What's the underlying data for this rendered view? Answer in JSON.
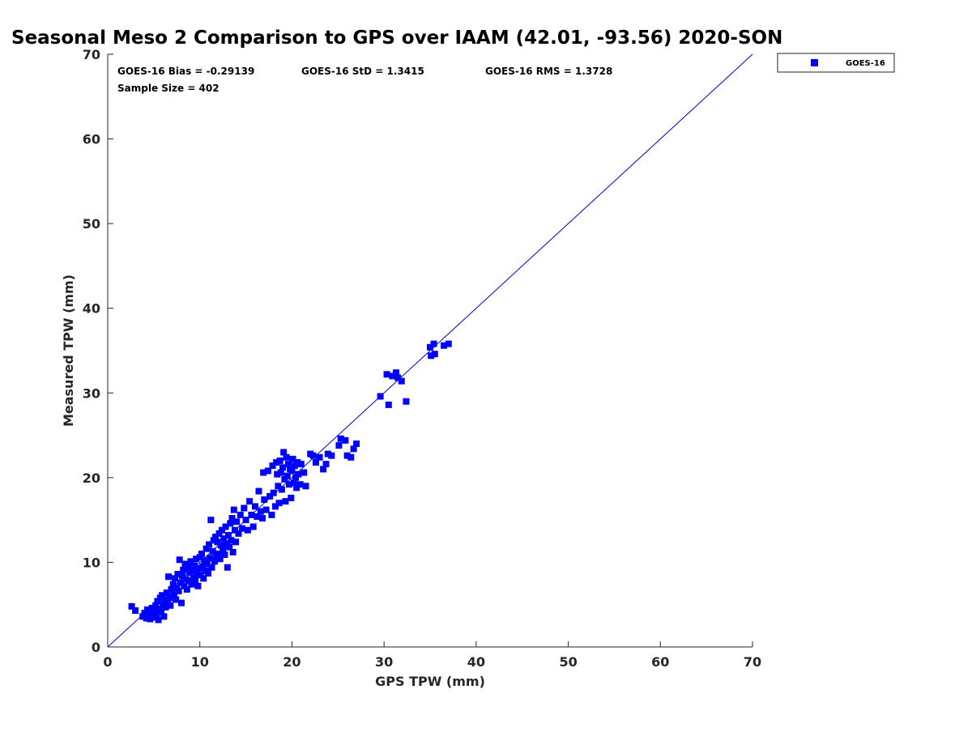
{
  "chart_data": {
    "type": "scatter",
    "title": "Seasonal Meso 2 Comparison to GPS over IAAM (42.01, -93.56) 2020-SON",
    "xlabel": "GPS TPW (mm)",
    "ylabel": "Measured TPW (mm)",
    "xlim": [
      0,
      70
    ],
    "ylim": [
      0,
      70
    ],
    "x_ticks": [
      "0",
      "10",
      "20",
      "30",
      "40",
      "50",
      "60",
      "70"
    ],
    "y_ticks": [
      "0",
      "10",
      "20",
      "30",
      "40",
      "50",
      "60",
      "70"
    ],
    "grid": false,
    "legend_placement": "outside-top-right",
    "reference_line": {
      "from": [
        0,
        0
      ],
      "to": [
        70,
        70
      ],
      "color": "#0000cc"
    },
    "annotations": {
      "bias": "GOES-16 Bias = -0.29139",
      "std": "GOES-16 StD = 1.3415",
      "rms": "GOES-16 RMS = 1.3728",
      "sample_size": "Sample Size = 402"
    },
    "series": [
      {
        "name": "GOES-16",
        "color": "#0000ff",
        "marker": "square",
        "points": [
          [
            2.6,
            4.8
          ],
          [
            3.0,
            4.3
          ],
          [
            3.8,
            3.6
          ],
          [
            4.0,
            4.0
          ],
          [
            4.2,
            3.4
          ],
          [
            4.3,
            4.4
          ],
          [
            4.5,
            3.8
          ],
          [
            4.6,
            3.3
          ],
          [
            4.8,
            4.6
          ],
          [
            4.9,
            3.7
          ],
          [
            5.0,
            4.2
          ],
          [
            5.1,
            3.5
          ],
          [
            5.2,
            4.9
          ],
          [
            5.3,
            3.9
          ],
          [
            5.4,
            5.4
          ],
          [
            5.5,
            3.2
          ],
          [
            5.6,
            4.5
          ],
          [
            5.7,
            5.8
          ],
          [
            5.8,
            4.1
          ],
          [
            5.9,
            6.1
          ],
          [
            6.0,
            5.0
          ],
          [
            6.1,
            3.6
          ],
          [
            6.2,
            5.6
          ],
          [
            6.3,
            4.7
          ],
          [
            6.4,
            6.4
          ],
          [
            6.5,
            5.3
          ],
          [
            6.6,
            8.3
          ],
          [
            6.7,
            6.0
          ],
          [
            6.8,
            4.9
          ],
          [
            6.9,
            6.8
          ],
          [
            7.0,
            5.8
          ],
          [
            7.1,
            7.4
          ],
          [
            7.2,
            6.3
          ],
          [
            7.3,
            8.1
          ],
          [
            7.4,
            5.6
          ],
          [
            7.5,
            7.0
          ],
          [
            7.6,
            8.6
          ],
          [
            7.7,
            6.6
          ],
          [
            7.8,
            10.3
          ],
          [
            7.9,
            7.6
          ],
          [
            8.0,
            5.2
          ],
          [
            8.1,
            8.4
          ],
          [
            8.2,
            9.1
          ],
          [
            8.3,
            7.2
          ],
          [
            8.4,
            9.8
          ],
          [
            8.5,
            8.0
          ],
          [
            8.6,
            6.8
          ],
          [
            8.7,
            9.4
          ],
          [
            8.8,
            7.8
          ],
          [
            8.9,
            8.8
          ],
          [
            9.0,
            10.1
          ],
          [
            9.1,
            7.4
          ],
          [
            9.2,
            9.0
          ],
          [
            9.3,
            8.2
          ],
          [
            9.4,
            9.6
          ],
          [
            9.5,
            7.9
          ],
          [
            9.6,
            10.4
          ],
          [
            9.7,
            8.6
          ],
          [
            9.8,
            7.2
          ],
          [
            9.9,
            9.3
          ],
          [
            10.0,
            10.6
          ],
          [
            10.1,
            8.5
          ],
          [
            10.2,
            11.0
          ],
          [
            10.3,
            9.5
          ],
          [
            10.4,
            8.1
          ],
          [
            10.5,
            10.2
          ],
          [
            10.6,
            9.0
          ],
          [
            10.7,
            11.6
          ],
          [
            10.8,
            9.8
          ],
          [
            10.9,
            8.7
          ],
          [
            11.0,
            12.1
          ],
          [
            11.1,
            10.5
          ],
          [
            11.2,
            15.0
          ],
          [
            11.3,
            9.4
          ],
          [
            11.4,
            11.3
          ],
          [
            11.5,
            12.6
          ],
          [
            11.6,
            10.1
          ],
          [
            11.7,
            13.0
          ],
          [
            11.8,
            10.8
          ],
          [
            11.9,
            12.4
          ],
          [
            12.0,
            11.0
          ],
          [
            12.1,
            13.4
          ],
          [
            12.2,
            10.4
          ],
          [
            12.3,
            12.0
          ],
          [
            12.4,
            13.8
          ],
          [
            12.5,
            11.5
          ],
          [
            12.6,
            12.8
          ],
          [
            12.7,
            10.9
          ],
          [
            12.8,
            14.2
          ],
          [
            12.9,
            12.2
          ],
          [
            13.0,
            9.4
          ],
          [
            13.1,
            13.2
          ],
          [
            13.2,
            11.8
          ],
          [
            13.3,
            14.6
          ],
          [
            13.4,
            12.6
          ],
          [
            13.5,
            15.2
          ],
          [
            13.6,
            11.2
          ],
          [
            13.7,
            16.2
          ],
          [
            13.8,
            13.8
          ],
          [
            13.9,
            12.4
          ],
          [
            14.0,
            14.8
          ],
          [
            14.2,
            13.4
          ],
          [
            14.4,
            15.6
          ],
          [
            14.6,
            14.0
          ],
          [
            14.8,
            16.4
          ],
          [
            15.0,
            15.0
          ],
          [
            15.2,
            13.8
          ],
          [
            15.4,
            17.2
          ],
          [
            15.6,
            15.6
          ],
          [
            15.8,
            14.2
          ],
          [
            16.0,
            16.6
          ],
          [
            16.2,
            15.4
          ],
          [
            16.4,
            18.4
          ],
          [
            16.6,
            16.0
          ],
          [
            16.8,
            15.2
          ],
          [
            16.9,
            20.6
          ],
          [
            17.0,
            17.4
          ],
          [
            17.2,
            16.2
          ],
          [
            17.4,
            20.8
          ],
          [
            17.6,
            17.8
          ],
          [
            17.8,
            15.6
          ],
          [
            17.9,
            21.4
          ],
          [
            18.0,
            18.2
          ],
          [
            18.2,
            16.6
          ],
          [
            18.3,
            21.8
          ],
          [
            18.4,
            20.4
          ],
          [
            18.5,
            19.0
          ],
          [
            18.6,
            17.0
          ],
          [
            18.7,
            22.0
          ],
          [
            18.8,
            20.6
          ],
          [
            18.9,
            18.6
          ],
          [
            19.0,
            21.2
          ],
          [
            19.1,
            23.0
          ],
          [
            19.2,
            19.8
          ],
          [
            19.3,
            17.2
          ],
          [
            19.4,
            22.4
          ],
          [
            19.5,
            20.2
          ],
          [
            19.6,
            21.6
          ],
          [
            19.7,
            19.2
          ],
          [
            19.8,
            21.0
          ],
          [
            19.9,
            17.6
          ],
          [
            20.0,
            20.8
          ],
          [
            20.1,
            22.2
          ],
          [
            20.2,
            19.4
          ],
          [
            20.3,
            21.4
          ],
          [
            20.4,
            20.0
          ],
          [
            20.5,
            18.8
          ],
          [
            20.6,
            21.8
          ],
          [
            20.7,
            20.4
          ],
          [
            20.9,
            19.2
          ],
          [
            21.0,
            21.6
          ],
          [
            21.3,
            20.6
          ],
          [
            21.5,
            19.0
          ],
          [
            22.0,
            22.8
          ],
          [
            22.3,
            22.6
          ],
          [
            22.6,
            21.8
          ],
          [
            23.0,
            22.4
          ],
          [
            23.4,
            21.0
          ],
          [
            23.7,
            21.6
          ],
          [
            23.9,
            22.8
          ],
          [
            24.3,
            22.6
          ],
          [
            25.1,
            23.8
          ],
          [
            25.3,
            24.6
          ],
          [
            25.8,
            24.4
          ],
          [
            26.0,
            22.6
          ],
          [
            26.4,
            22.4
          ],
          [
            26.7,
            23.4
          ],
          [
            27.0,
            24.0
          ],
          [
            29.6,
            29.6
          ],
          [
            30.3,
            32.2
          ],
          [
            30.5,
            28.6
          ],
          [
            30.9,
            32.0
          ],
          [
            31.3,
            32.4
          ],
          [
            31.5,
            31.8
          ],
          [
            31.9,
            31.4
          ],
          [
            32.4,
            29.0
          ],
          [
            35.0,
            35.4
          ],
          [
            35.1,
            34.4
          ],
          [
            35.4,
            35.8
          ],
          [
            35.5,
            34.6
          ],
          [
            36.5,
            35.6
          ],
          [
            37.0,
            35.8
          ]
        ]
      }
    ]
  }
}
